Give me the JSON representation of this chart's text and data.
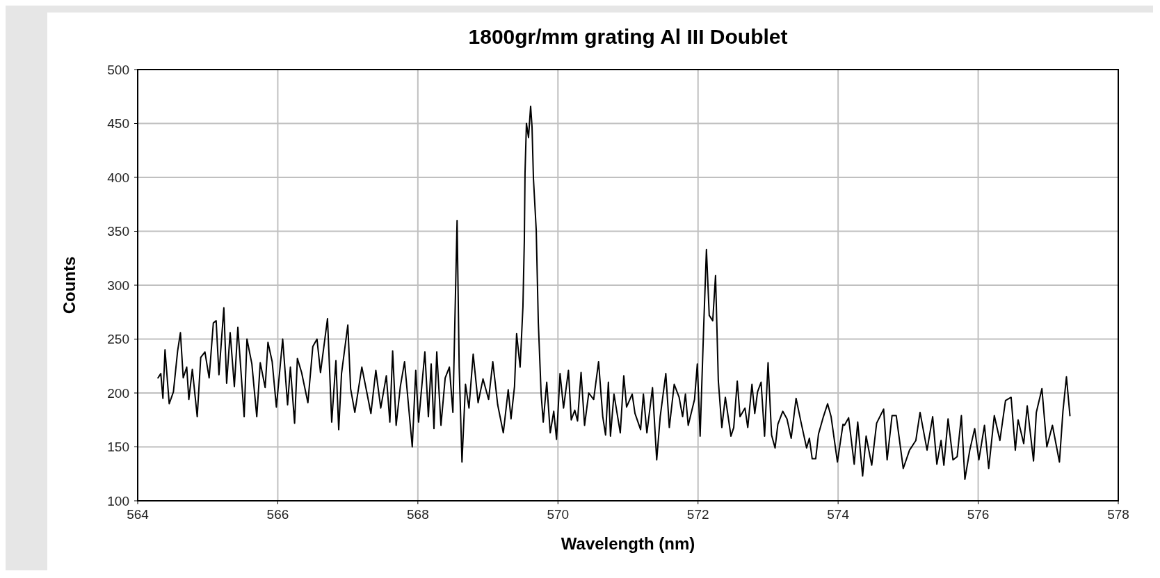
{
  "chart_data": {
    "type": "line",
    "title": "1800gr/mm grating Al III Doublet",
    "xlabel": "Wavelength (nm)",
    "ylabel": "Counts",
    "xlim": [
      564,
      578
    ],
    "xticks": [
      564,
      566,
      568,
      570,
      572,
      574,
      576,
      578
    ],
    "ylim": [
      100,
      500
    ],
    "yticks": [
      100,
      150,
      200,
      250,
      300,
      350,
      400,
      450,
      500
    ],
    "grid": true,
    "line_style": "solid",
    "marker": "none",
    "series": [
      {
        "color": "#000000",
        "x": [
          564.29,
          564.33,
          564.36,
          564.39,
          564.45,
          564.51,
          564.57,
          564.61,
          564.65,
          564.7,
          564.73,
          564.78,
          564.85,
          564.9,
          564.96,
          565.02,
          565.08,
          565.12,
          565.16,
          565.23,
          565.27,
          565.32,
          565.38,
          565.43,
          565.52,
          565.56,
          565.63,
          565.7,
          565.75,
          565.82,
          565.86,
          565.92,
          565.98,
          566.07,
          566.14,
          566.18,
          566.24,
          566.28,
          566.34,
          566.43,
          566.5,
          566.56,
          566.61,
          566.71,
          566.77,
          566.83,
          566.87,
          566.91,
          567.0,
          567.04,
          567.1,
          567.2,
          567.27,
          567.33,
          567.4,
          567.47,
          567.55,
          567.6,
          567.64,
          567.69,
          567.75,
          567.81,
          567.92,
          567.97,
          568.01,
          568.1,
          568.15,
          568.19,
          568.23,
          568.27,
          568.33,
          568.39,
          568.45,
          568.5,
          568.56,
          568.59,
          568.63,
          568.68,
          568.73,
          568.79,
          568.86,
          568.93,
          569.01,
          569.07,
          569.14,
          569.22,
          569.29,
          569.33,
          569.38,
          569.41,
          569.46,
          569.5,
          569.52,
          569.53,
          569.55,
          569.58,
          569.61,
          569.63,
          569.65,
          569.69,
          569.72,
          569.76,
          569.79,
          569.84,
          569.89,
          569.94,
          569.98,
          570.03,
          570.08,
          570.15,
          570.19,
          570.24,
          570.28,
          570.33,
          570.38,
          570.44,
          570.51,
          570.58,
          570.64,
          570.68,
          570.72,
          570.75,
          570.8,
          570.89,
          570.94,
          570.98,
          571.06,
          571.1,
          571.18,
          571.22,
          571.27,
          571.35,
          571.41,
          571.46,
          571.54,
          571.59,
          571.66,
          571.73,
          571.78,
          571.82,
          571.86,
          571.95,
          571.99,
          572.03,
          572.08,
          572.12,
          572.16,
          572.21,
          572.25,
          572.29,
          572.34,
          572.39,
          572.47,
          572.51,
          572.56,
          572.6,
          572.67,
          572.71,
          572.77,
          572.81,
          572.85,
          572.9,
          572.95,
          573.0,
          573.05,
          573.1,
          573.14,
          573.21,
          573.27,
          573.33,
          573.4,
          573.47,
          573.55,
          573.59,
          573.63,
          573.68,
          573.72,
          573.79,
          573.85,
          573.9,
          573.99,
          574.07,
          574.09,
          574.15,
          574.23,
          574.28,
          574.35,
          574.4,
          574.48,
          574.55,
          574.65,
          574.7,
          574.77,
          574.83,
          574.93,
          575.02,
          575.11,
          575.17,
          575.27,
          575.35,
          575.41,
          575.47,
          575.51,
          575.57,
          575.64,
          575.7,
          575.76,
          575.81,
          575.88,
          575.95,
          576.01,
          576.09,
          576.15,
          576.23,
          576.31,
          576.39,
          576.47,
          576.53,
          576.57,
          576.65,
          576.7,
          576.79,
          576.83,
          576.91,
          576.98,
          577.06,
          577.16,
          577.21,
          577.26,
          577.31
        ],
        "values": [
          214,
          218,
          195,
          240,
          190,
          201,
          239,
          256,
          214,
          224,
          194,
          222,
          178,
          233,
          238,
          214,
          265,
          267,
          217,
          279,
          209,
          256,
          206,
          261,
          178,
          250,
          227,
          178,
          228,
          205,
          247,
          229,
          187,
          250,
          189,
          224,
          172,
          232,
          219,
          191,
          243,
          250,
          219,
          269,
          173,
          230,
          166,
          218,
          263,
          204,
          182,
          224,
          201,
          181,
          221,
          186,
          216,
          173,
          239,
          170,
          206,
          229,
          150,
          221,
          173,
          238,
          178,
          227,
          167,
          238,
          170,
          214,
          224,
          182,
          360,
          224,
          136,
          208,
          186,
          236,
          191,
          213,
          194,
          229,
          189,
          163,
          203,
          176,
          206,
          255,
          224,
          280,
          341,
          404,
          450,
          437,
          466,
          447,
          399,
          351,
          265,
          199,
          173,
          210,
          163,
          183,
          157,
          218,
          186,
          221,
          175,
          184,
          174,
          219,
          170,
          200,
          194,
          229,
          178,
          161,
          210,
          160,
          199,
          163,
          216,
          187,
          199,
          181,
          166,
          199,
          163,
          205,
          138,
          178,
          218,
          168,
          208,
          196,
          178,
          199,
          170,
          194,
          227,
          160,
          260,
          333,
          272,
          267,
          309,
          211,
          168,
          196,
          160,
          168,
          211,
          178,
          186,
          168,
          208,
          181,
          201,
          210,
          160,
          228,
          161,
          149,
          171,
          183,
          176,
          158,
          195,
          173,
          149,
          158,
          139,
          139,
          162,
          178,
          190,
          178,
          136,
          171,
          170,
          177,
          134,
          173,
          123,
          160,
          133,
          172,
          185,
          138,
          179,
          179,
          130,
          147,
          156,
          182,
          147,
          178,
          134,
          156,
          133,
          176,
          138,
          141,
          179,
          120,
          147,
          167,
          138,
          170,
          130,
          179,
          156,
          193,
          196,
          147,
          175,
          153,
          188,
          137,
          182,
          204,
          150,
          170,
          136,
          183,
          215,
          179
        ]
      }
    ]
  }
}
